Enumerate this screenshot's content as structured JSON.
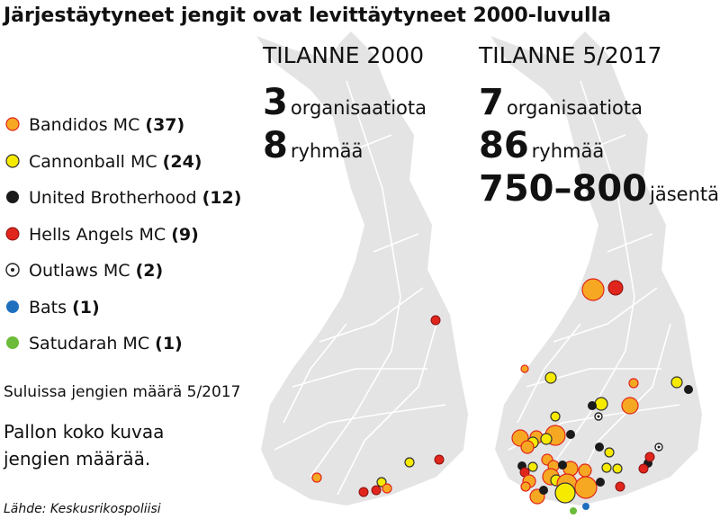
{
  "title": "Järjestäytyneet jengit ovat levittäytyneet 2000-luvulla",
  "legend": {
    "items": [
      {
        "name": "Bandidos MC",
        "count": "(37)"
      },
      {
        "name": "Cannonball MC",
        "count": "(24)"
      },
      {
        "name": "United Brotherhood",
        "count": "(12)"
      },
      {
        "name": "Hells Angels MC",
        "count": "(9)"
      },
      {
        "name": "Outlaws MC",
        "count": "(2)"
      },
      {
        "name": "Bats",
        "count": "(1)"
      },
      {
        "name": "Satudarah MC",
        "count": "(1)"
      }
    ]
  },
  "note": "Suluissa jengien määrä 5/2017",
  "size_note": [
    "Pallon koko kuvaa",
    "jengien määrää."
  ],
  "source": "Lähde: Keskusrikospoliisi",
  "panels": [
    {
      "heading": "TILANNE 2000",
      "stats": [
        {
          "value": "3",
          "unit": "organisaatiota"
        },
        {
          "value": "8",
          "unit": "ryhmää"
        }
      ]
    },
    {
      "heading": "TILANNE 5/2017",
      "stats": [
        {
          "value": "7",
          "unit": "organisaatiota"
        },
        {
          "value": "86",
          "unit": "ryhmää"
        },
        {
          "value": "750–800",
          "unit": "jäsentä"
        }
      ]
    }
  ]
}
